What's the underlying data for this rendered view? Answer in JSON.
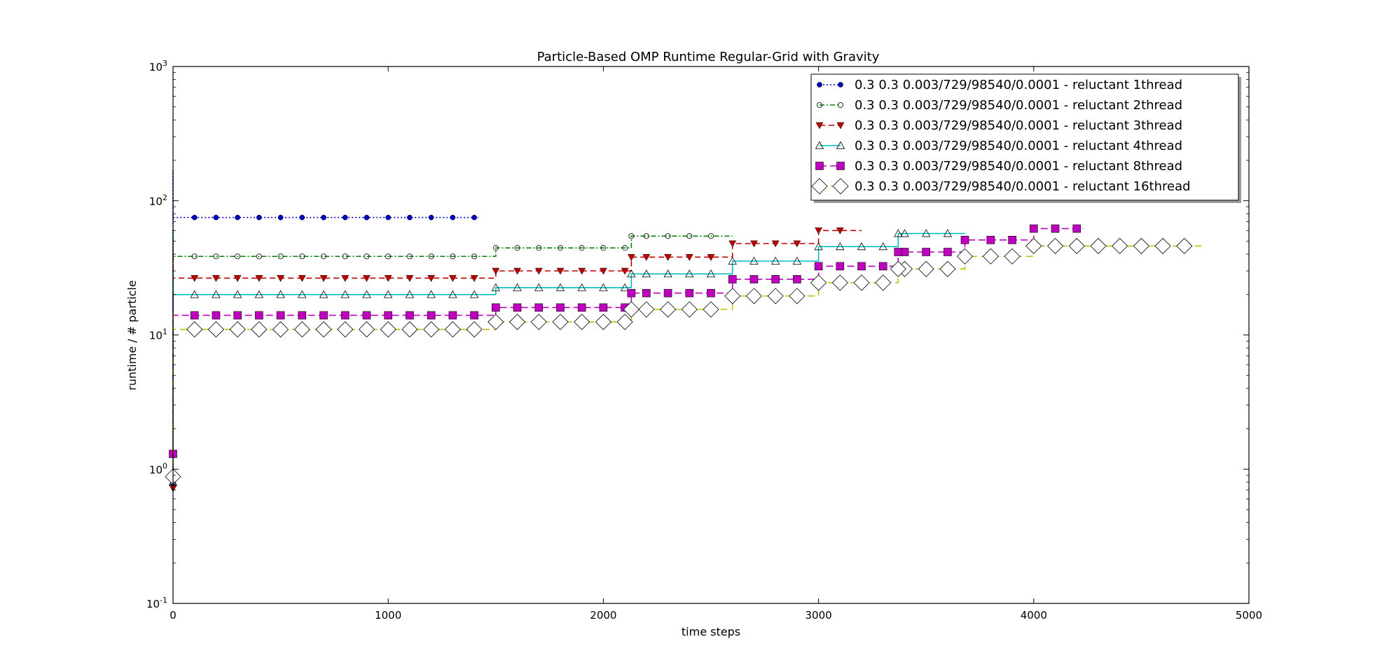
{
  "chart_data": {
    "type": "line",
    "title": "Particle-Based OMP Runtime Regular-Grid with Gravity",
    "xlabel": "time steps",
    "ylabel": "runtime / # particle",
    "xlim": [
      0,
      5000
    ],
    "ylim": [
      0.1,
      1000
    ],
    "yscale": "log",
    "grid": false,
    "legend_position": "top-right",
    "x_ticks": [
      "0",
      "1000",
      "2000",
      "3000",
      "4000",
      "5000"
    ],
    "y_ticks": [
      {
        "base": "10",
        "exp": "-1"
      },
      {
        "base": "10",
        "exp": "0"
      },
      {
        "base": "10",
        "exp": "1"
      },
      {
        "base": "10",
        "exp": "2"
      },
      {
        "base": "10",
        "exp": "3"
      }
    ],
    "series": [
      {
        "name": "0.3 0.3 0.003/729/98540/0.0001 - reluctant 1thread",
        "color": "#0000bf",
        "marker": "circle-filled",
        "dash": "2,3",
        "start": {
          "x": 0,
          "y": 0.75
        },
        "spike": 170,
        "end_x": 1420,
        "segments": [
          {
            "x0": 0,
            "x1": 1420,
            "y": 75
          }
        ]
      },
      {
        "name": "0.3 0.3 0.003/729/98540/0.0001 - reluctant 2thread",
        "color": "#008000",
        "marker": "circle-open",
        "dash": "7,3,2,3",
        "start": {
          "x": 0,
          "y": 0.78
        },
        "spike": 60,
        "end_x": 2600,
        "segments": [
          {
            "x0": 0,
            "x1": 1500,
            "y": 38.5
          },
          {
            "x0": 1500,
            "x1": 2130,
            "y": 44.5
          },
          {
            "x0": 2130,
            "x1": 2600,
            "y": 54.5
          }
        ]
      },
      {
        "name": "0.3 0.3 0.003/729/98540/0.0001 - reluctant 3thread",
        "color": "#c00000",
        "marker": "triangle-down-filled",
        "dash": "8,5",
        "start": {
          "x": 0,
          "y": 0.72
        },
        "spike": 40,
        "end_x": 3200,
        "segments": [
          {
            "x0": 0,
            "x1": 1500,
            "y": 26.5
          },
          {
            "x0": 1500,
            "x1": 2130,
            "y": 30
          },
          {
            "x0": 2130,
            "x1": 2600,
            "y": 38
          },
          {
            "x0": 2600,
            "x1": 3000,
            "y": 48
          },
          {
            "x0": 3000,
            "x1": 3200,
            "y": 60
          }
        ]
      },
      {
        "name": "0.3 0.3 0.003/729/98540/0.0001 - reluctant 4thread",
        "color": "#00bfbf",
        "marker": "triangle-up-open",
        "dash": "",
        "start": {
          "x": 0,
          "y": 0.8
        },
        "spike": 30,
        "end_x": 3680,
        "segments": [
          {
            "x0": 0,
            "x1": 1500,
            "y": 20
          },
          {
            "x0": 1500,
            "x1": 2130,
            "y": 22.5
          },
          {
            "x0": 2130,
            "x1": 2600,
            "y": 28.5
          },
          {
            "x0": 2600,
            "x1": 3000,
            "y": 35.5
          },
          {
            "x0": 3000,
            "x1": 3370,
            "y": 45.5
          },
          {
            "x0": 3370,
            "x1": 3680,
            "y": 57
          }
        ]
      },
      {
        "name": "0.3 0.3 0.003/729/98540/0.0001 - reluctant 8thread",
        "color": "#bf00bf",
        "marker": "square-filled",
        "dash": "10,5",
        "start": {
          "x": 0,
          "y": 1.3
        },
        "spike": 20,
        "end_x": 4230,
        "segments": [
          {
            "x0": 0,
            "x1": 1500,
            "y": 14
          },
          {
            "x0": 1500,
            "x1": 2130,
            "y": 16
          },
          {
            "x0": 2130,
            "x1": 2600,
            "y": 20.5
          },
          {
            "x0": 2600,
            "x1": 3000,
            "y": 26
          },
          {
            "x0": 3000,
            "x1": 3370,
            "y": 32.5
          },
          {
            "x0": 3370,
            "x1": 3680,
            "y": 41.5
          },
          {
            "x0": 3680,
            "x1": 4000,
            "y": 51
          },
          {
            "x0": 4000,
            "x1": 4230,
            "y": 62
          }
        ]
      },
      {
        "name": "0.3 0.3 0.003/729/98540/0.0001 - reluctant 16thread",
        "color": "#bfbf00",
        "marker": "diamond-open",
        "dash": "10,6",
        "start": {
          "x": 0,
          "y": 0.88
        },
        "spike": 15,
        "end_x": 4780,
        "segments": [
          {
            "x0": 0,
            "x1": 1500,
            "y": 11
          },
          {
            "x0": 1500,
            "x1": 2130,
            "y": 12.5
          },
          {
            "x0": 2130,
            "x1": 2600,
            "y": 15.5
          },
          {
            "x0": 2600,
            "x1": 3000,
            "y": 19.5
          },
          {
            "x0": 3000,
            "x1": 3370,
            "y": 24.5
          },
          {
            "x0": 3370,
            "x1": 3680,
            "y": 31
          },
          {
            "x0": 3680,
            "x1": 4000,
            "y": 38.5
          },
          {
            "x0": 4000,
            "x1": 4780,
            "y": 46
          }
        ]
      }
    ]
  }
}
